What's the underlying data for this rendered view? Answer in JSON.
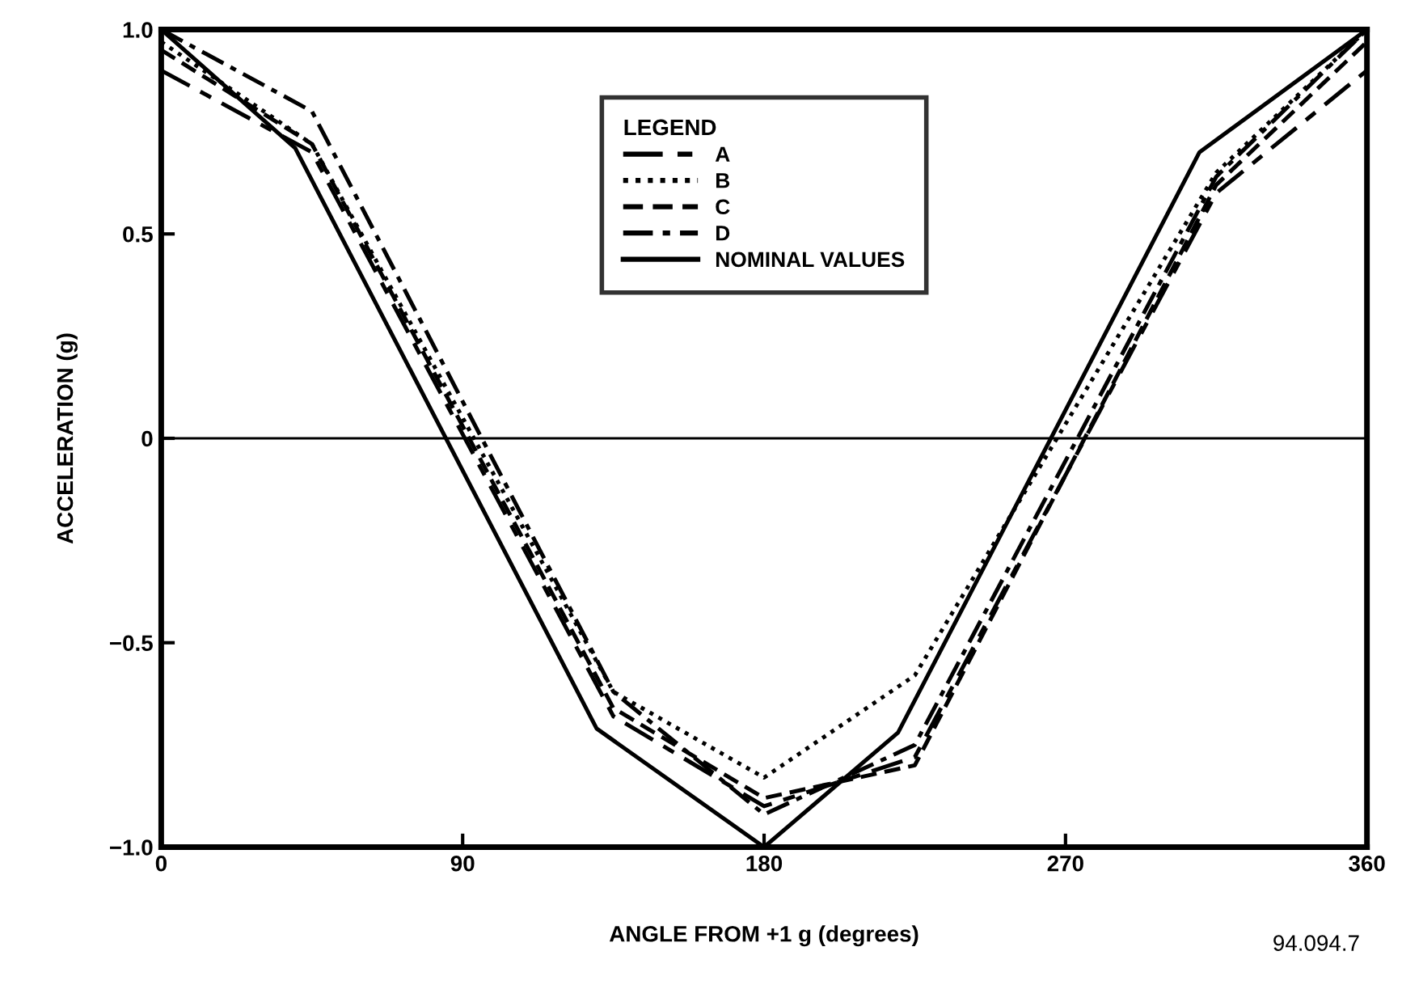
{
  "chart_data": {
    "type": "line",
    "xlabel": "ANGLE FROM +1 g (degrees)",
    "ylabel": "ACCELERATION (g)",
    "legend_title": "LEGEND",
    "legend": "top",
    "grid": false,
    "marker": "none",
    "xlim": [
      0,
      360
    ],
    "ylim": [
      -1.0,
      1.0
    ],
    "xticks": [
      0,
      90,
      180,
      270,
      360
    ],
    "yticks": [
      {
        "value": -1.0,
        "label": "−1.0"
      },
      {
        "value": -0.5,
        "label": "−0.5"
      },
      {
        "value": 0,
        "label": "0"
      },
      {
        "value": 0.5,
        "label": "0.5"
      },
      {
        "value": 1.0,
        "label": "1.0"
      }
    ],
    "ref_lines": [
      {
        "axis": "y",
        "value": 0,
        "color": "#000000",
        "line_style": "solid"
      }
    ],
    "annotations": [
      "94.094.7"
    ],
    "series": [
      {
        "name": "A",
        "color": "#000000",
        "line_style": "longdash",
        "x": [
          0,
          45,
          135,
          180,
          225,
          315,
          360
        ],
        "values": [
          0.9,
          0.7,
          -0.68,
          -0.9,
          -0.78,
          0.6,
          0.9
        ]
      },
      {
        "name": "B",
        "color": "#000000",
        "line_style": "dotted",
        "x": [
          0,
          45,
          135,
          180,
          225,
          315,
          360
        ],
        "values": [
          0.97,
          0.72,
          -0.62,
          -0.83,
          -0.58,
          0.65,
          1.0
        ]
      },
      {
        "name": "C",
        "color": "#000000",
        "line_style": "dashed",
        "x": [
          0,
          45,
          135,
          180,
          225,
          315,
          360
        ],
        "values": [
          0.95,
          0.72,
          -0.66,
          -0.88,
          -0.8,
          0.62,
          0.97
        ]
      },
      {
        "name": "D",
        "color": "#000000",
        "line_style": "dashdot",
        "x": [
          0,
          45,
          135,
          180,
          225,
          315,
          360
        ],
        "values": [
          1.0,
          0.8,
          -0.62,
          -0.92,
          -0.75,
          0.64,
          1.0
        ]
      },
      {
        "name": "NOMINAL VALUES",
        "color": "#000000",
        "line_style": "solid",
        "x": [
          0,
          40,
          130,
          180,
          220,
          310,
          360
        ],
        "values": [
          1.0,
          0.71,
          -0.71,
          -1.0,
          -0.72,
          0.7,
          1.0
        ]
      }
    ]
  }
}
